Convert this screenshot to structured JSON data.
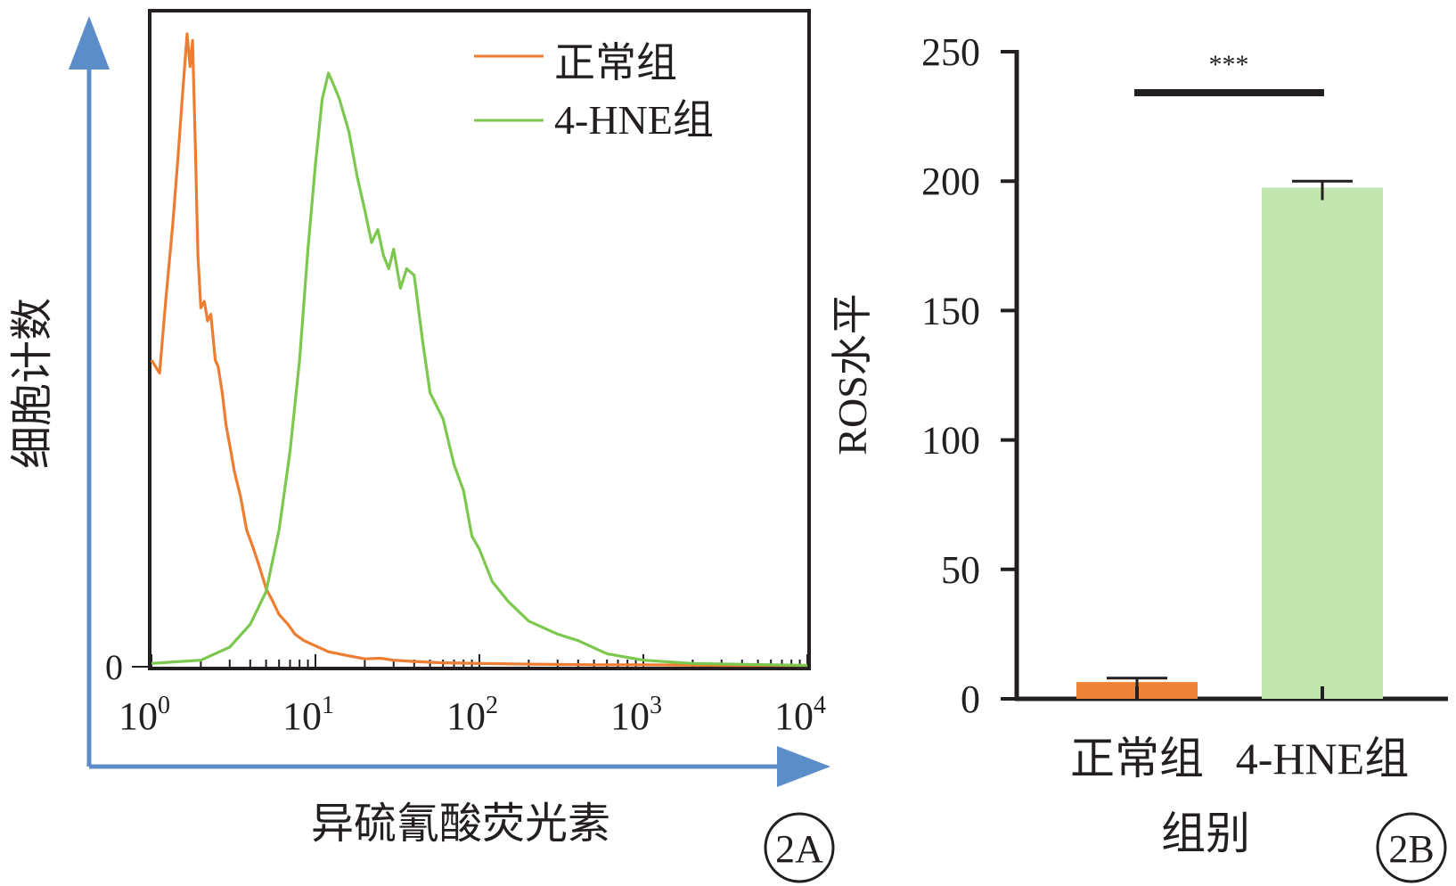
{
  "chart_data": [
    {
      "panel_label": "2A",
      "type": "line",
      "xlabel": "异硫氰酸荧光素",
      "ylabel": "细胞计数",
      "x_scale": "log",
      "xlim": [
        1,
        10000
      ],
      "x_ticks": [
        {
          "value": 1,
          "base": "10",
          "exp": "0"
        },
        {
          "value": 10,
          "base": "10",
          "exp": "1"
        },
        {
          "value": 100,
          "base": "10",
          "exp": "2"
        },
        {
          "value": 1000,
          "base": "10",
          "exp": "3"
        },
        {
          "value": 10000,
          "base": "10",
          "exp": "4"
        }
      ],
      "y_ticks": [
        {
          "value": 0,
          "label": "0"
        }
      ],
      "ylim": [
        0,
        100
      ],
      "legend_position": "top-right",
      "series": [
        {
          "name": "正常组",
          "color": "#ed7d31",
          "x": [
            1.0,
            1.12,
            1.22,
            1.35,
            1.45,
            1.55,
            1.65,
            1.72,
            1.78,
            1.85,
            1.92,
            2.0,
            2.1,
            2.2,
            2.3,
            2.45,
            2.55,
            2.7,
            2.85,
            3.0,
            3.2,
            3.5,
            3.8,
            4.2,
            4.6,
            5.0,
            5.5,
            6.0,
            6.8,
            7.5,
            8.5,
            10.0,
            12.0,
            15.0,
            20.0,
            25.0,
            30.0,
            40.0,
            60.0,
            100.0,
            200.0,
            500.0,
            1000.0,
            3000.0,
            10000.0
          ],
          "y": [
            47,
            45,
            56,
            68,
            78,
            88,
            97,
            92,
            96,
            80,
            63,
            55,
            56,
            53,
            54,
            47,
            46,
            42,
            37,
            34,
            30,
            26,
            21,
            18,
            15,
            12,
            10,
            8,
            6.5,
            5,
            4,
            3.2,
            2.3,
            1.8,
            1.2,
            1.3,
            1.0,
            0.8,
            0.6,
            0.5,
            0.4,
            0.3,
            0.3,
            0.2,
            0.2
          ]
        },
        {
          "name": "4-HNE组",
          "color": "#7cc84f",
          "x": [
            1.0,
            1.5,
            2.0,
            3.0,
            4.0,
            5.0,
            6.0,
            7.0,
            8.0,
            9.0,
            10.0,
            11.0,
            12.0,
            13.0,
            14.0,
            16.0,
            18.0,
            20.0,
            22.0,
            24.0,
            26.0,
            28.0,
            30.0,
            33.0,
            36.0,
            40.0,
            45.0,
            50.0,
            60.0,
            70.0,
            80.0,
            90.0,
            100.0,
            120.0,
            150.0,
            200.0,
            300.0,
            400.0,
            600.0,
            1000.0,
            2000.0,
            10000.0
          ],
          "y": [
            0.5,
            0.8,
            1.0,
            3.0,
            6.5,
            11.5,
            21,
            33,
            47,
            64,
            77,
            87,
            91,
            89,
            87,
            82,
            75,
            70,
            65,
            67,
            63,
            61,
            64,
            58,
            61,
            60,
            50,
            42,
            38,
            31,
            27,
            20,
            18,
            13,
            10,
            7,
            5,
            4,
            2,
            1,
            0.5,
            0.2
          ]
        }
      ]
    },
    {
      "panel_label": "2B",
      "type": "bar",
      "xlabel": "组别",
      "ylabel": "ROS水平",
      "categories": [
        "正常组",
        "4-HNE组"
      ],
      "values": [
        6.5,
        197.5
      ],
      "errors": [
        1.5,
        2.5
      ],
      "colors": [
        "#f0833a",
        "#c3e6b0"
      ],
      "ylim": [
        0,
        250
      ],
      "y_ticks": [
        "0",
        "50",
        "100",
        "150",
        "200",
        "250"
      ],
      "significance": {
        "between": [
          "正常组",
          "4-HNE组"
        ],
        "label": "***"
      }
    }
  ]
}
